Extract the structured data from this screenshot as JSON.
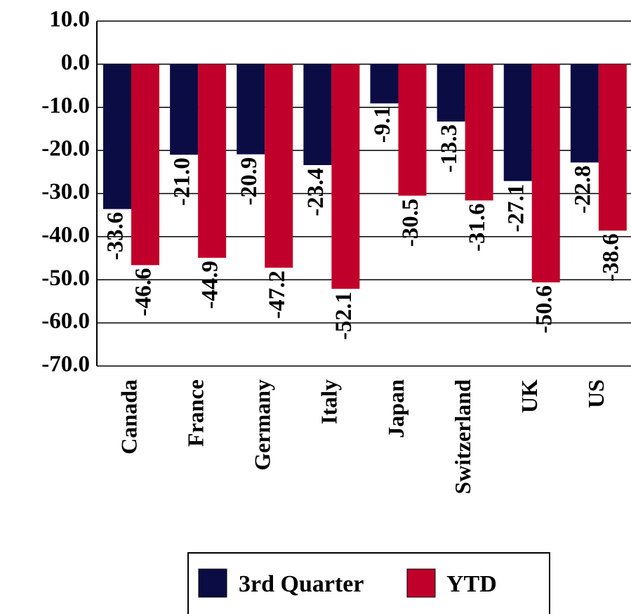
{
  "chart_data": {
    "type": "bar",
    "categories": [
      "Canada",
      "France",
      "Germany",
      "Italy",
      "Japan",
      "Switzerland",
      "UK",
      "US"
    ],
    "series": [
      {
        "name": "3rd Quarter",
        "color": "#0c0c44",
        "values": [
          -33.6,
          -21.0,
          -20.9,
          -23.4,
          -9.1,
          -13.3,
          -27.1,
          -22.8
        ],
        "value_labels": [
          "-33.6",
          "-21.0",
          "-20.9",
          "-23.4",
          "-9.1",
          "-13.3",
          "-27.1",
          "-22.8"
        ]
      },
      {
        "name": "YTD",
        "color": "#c0002a",
        "values": [
          -46.6,
          -44.9,
          -47.2,
          -52.1,
          -30.5,
          -31.6,
          -50.6,
          -38.6
        ],
        "value_labels": [
          "-46.6",
          "-44.9",
          "-47.2",
          "-52.1",
          "-30.5",
          "-31.6",
          "-50.6",
          "-38.6"
        ]
      }
    ],
    "ylim": [
      -70,
      10
    ],
    "yticks": [
      {
        "value": 10,
        "label": "10.0"
      },
      {
        "value": 0,
        "label": "0.0"
      },
      {
        "value": -10,
        "label": "-10.0"
      },
      {
        "value": -20,
        "label": "-20.0"
      },
      {
        "value": -30,
        "label": "-30.0"
      },
      {
        "value": -40,
        "label": "-40.0"
      },
      {
        "value": -50,
        "label": "-50.0"
      },
      {
        "value": -60,
        "label": "-60.0"
      },
      {
        "value": -70,
        "label": "-70.0"
      }
    ],
    "grid": true,
    "legend": "bottom"
  }
}
